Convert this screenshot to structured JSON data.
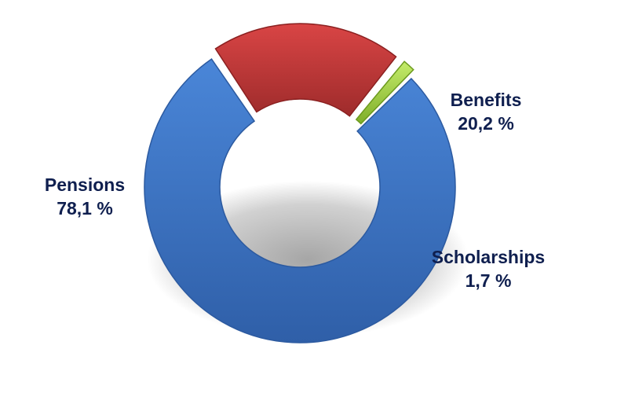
{
  "chart_data": {
    "type": "pie",
    "donut": true,
    "title": "",
    "categories": [
      "Pensions",
      "Benefits",
      "Scholarships"
    ],
    "values": [
      78.1,
      20.2,
      1.7
    ],
    "value_labels": [
      "78,1 %",
      "20,2 %",
      "1,7 %"
    ],
    "colors": [
      "#3f78c9",
      "#c33a3a",
      "#a6d24a"
    ],
    "exploded": [
      "Benefits",
      "Scholarships"
    ],
    "legend": "none"
  }
}
